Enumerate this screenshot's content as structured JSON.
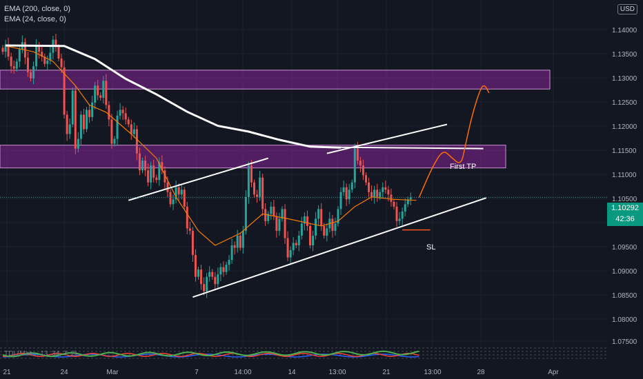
{
  "legend": {
    "ema200": "EMA (200, close, 0)",
    "ema24": "EMA (24, close, 0)"
  },
  "currency": "USD",
  "current_price": {
    "value": "1.10292",
    "countdown": "42:36"
  },
  "indicator": {
    "label": "TDI (Mac...  13, 34, 7, 2)"
  },
  "annotations": {
    "first_tp": "First TP",
    "sl": "SL"
  },
  "colors": {
    "background": "#131722",
    "up": "#26a69a",
    "down": "#ef5350",
    "ema200": "#ffffff",
    "ema24": "#f57c00",
    "zone": "#9c27b0",
    "projection": "#ff6d00"
  },
  "chart_data": {
    "type": "candlestick",
    "y_ticks": [
      "1.07500",
      "1.08000",
      "1.08500",
      "1.09000",
      "1.09500",
      "1.10000",
      "1.10500",
      "1.11000",
      "1.11500",
      "1.12000",
      "1.12500",
      "1.13000",
      "1.13500",
      "1.14000"
    ],
    "x_ticks": [
      "21",
      "24",
      "Mar",
      "7",
      "14:00",
      "14",
      "13:00",
      "21",
      "13:00",
      "28",
      "Apr"
    ],
    "ylim": [
      1.0725,
      1.1437
    ],
    "price_line": 1.10292,
    "zones": [
      {
        "from": 1.1253,
        "to": 1.1292
      },
      {
        "from": 1.109,
        "to": 1.1137
      }
    ],
    "closes": [
      1.133,
      1.1345,
      1.132,
      1.13,
      1.1295,
      1.131,
      1.1335,
      1.135,
      1.1318,
      1.1288,
      1.1275,
      1.13,
      1.1342,
      1.133,
      1.132,
      1.1305,
      1.1312,
      1.1328,
      1.1355,
      1.134,
      1.1316,
      1.1298,
      1.12,
      1.116,
      1.118,
      1.125,
      1.113,
      1.115,
      1.12,
      1.117,
      1.121,
      1.1195,
      1.1225,
      1.126,
      1.124,
      1.1235,
      1.127,
      1.122,
      1.119,
      1.114,
      1.115,
      1.1198,
      1.121,
      1.1203,
      1.119,
      1.118,
      1.116,
      1.117,
      1.112,
      1.1085,
      1.1105,
      1.1085,
      1.106,
      1.1095,
      1.107,
      1.1065,
      1.1102,
      1.1085,
      1.106,
      1.104,
      1.1015,
      1.1025,
      1.105,
      1.1035,
      1.1045,
      1.101,
      1.0965,
      1.096,
      1.091,
      1.0865,
      1.088,
      1.085,
      1.0835,
      1.0865,
      1.0875,
      1.0865,
      1.085,
      1.087,
      1.0885,
      1.0875,
      1.089,
      1.09,
      1.093,
      1.0925,
      1.095,
      1.0925,
      1.096,
      1.103,
      1.1095,
      1.106,
      1.1035,
      1.103,
      1.107,
      1.1005,
      1.098,
      1.0995,
      1.101,
      1.099,
      1.096,
      1.0985,
      1.1005,
      1.0945,
      1.0905,
      1.092,
      1.0935,
      1.093,
      1.095,
      1.0975,
      1.099,
      1.097,
      1.093,
      1.095,
      1.0985,
      1.1005,
      1.097,
      1.095,
      1.0965,
      1.0985,
      1.096,
      1.0975,
      1.1005,
      1.104,
      1.105,
      1.1025,
      1.1045,
      1.106,
      1.113,
      1.1105,
      1.1095,
      1.1075,
      1.106,
      1.104,
      1.103,
      1.1045,
      1.103,
      1.104,
      1.105,
      1.1045,
      1.1035,
      1.102,
      1.101,
      1.098,
      1.0985,
      1.1,
      1.1015,
      1.1025,
      1.1029
    ],
    "ema200": [
      [
        1.0,
        1.1343
      ],
      [
        22.0,
        1.1342
      ],
      [
        33.0,
        1.1315
      ],
      [
        44.0,
        1.1274
      ],
      [
        55.0,
        1.1242
      ],
      [
        66.0,
        1.1206
      ],
      [
        77.0,
        1.1177
      ],
      [
        88.0,
        1.1165
      ],
      [
        99.0,
        1.1148
      ],
      [
        110.0,
        1.1134
      ],
      [
        121.0,
        1.1132
      ]
    ],
    "ema24": [
      [
        1.0,
        1.1342
      ],
      [
        11.0,
        1.133
      ],
      [
        18.0,
        1.131
      ],
      [
        26.0,
        1.126
      ],
      [
        31.0,
        1.122
      ],
      [
        37.0,
        1.1205
      ],
      [
        46.0,
        1.116
      ],
      [
        55.0,
        1.111
      ],
      [
        62.0,
        1.103
      ],
      [
        70.0,
        1.096
      ],
      [
        76.0,
        1.093
      ],
      [
        85.0,
        1.0955
      ],
      [
        93.0,
        1.0995
      ],
      [
        102.0,
        1.0985
      ],
      [
        114.0,
        1.097
      ],
      [
        120.0,
        1.098
      ],
      [
        126.0,
        1.101
      ],
      [
        132.0,
        1.103
      ],
      [
        140.0,
        1.1025
      ],
      [
        148.0,
        1.1023
      ]
    ],
    "trendlines": [
      {
        "from": [
          45.0,
          1.1023
        ],
        "to": [
          95.0,
          1.111
        ]
      },
      {
        "from": [
          68.0,
          1.0823
        ],
        "to": [
          173.0,
          1.1028
        ]
      },
      {
        "from": [
          112.0,
          1.1133
        ],
        "to": [
          172.0,
          1.113
        ]
      },
      {
        "from": [
          116.0,
          1.112
        ],
        "to": [
          159.0,
          1.118
        ]
      },
      {
        "from": [
          143.0,
          1.0962
        ],
        "to": [
          153.0,
          1.0962
        ]
      }
    ],
    "projection": [
      [
        149.0,
        1.1029
      ],
      [
        153.5,
        1.1089
      ],
      [
        157.5,
        1.1128
      ],
      [
        160.5,
        1.1112
      ],
      [
        164.0,
        1.1095
      ],
      [
        165.5,
        1.1135
      ],
      [
        168.0,
        1.12
      ],
      [
        171.0,
        1.1255
      ],
      [
        172.5,
        1.1262
      ],
      [
        174.0,
        1.1245
      ]
    ]
  }
}
